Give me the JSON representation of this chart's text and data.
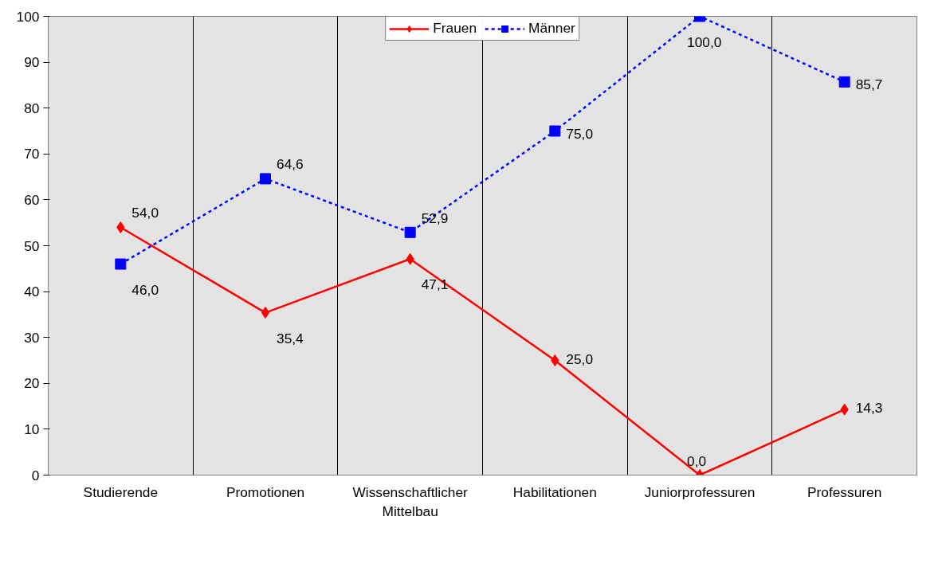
{
  "chart_data": {
    "type": "line",
    "categories": [
      "Studierende",
      "Promotionen",
      "Wissenschaftlicher\nMittelbau",
      "Habilitationen",
      "Juniorprofessuren",
      "Professuren"
    ],
    "series": [
      {
        "name": "Frauen",
        "color": "#ff0000",
        "marker": "diamond",
        "line_style": "solid",
        "values": [
          54.0,
          35.4,
          47.1,
          25.0,
          0.0,
          14.3
        ],
        "value_labels": [
          "54,0",
          "35,4",
          "47,1",
          "25,0",
          "0,0",
          "14,3"
        ]
      },
      {
        "name": "Männer",
        "color": "#0000ff",
        "marker": "square",
        "line_style": "dashed",
        "values": [
          46.0,
          64.6,
          52.9,
          75.0,
          100.0,
          85.7
        ],
        "value_labels": [
          "46,0",
          "64,6",
          "52,9",
          "75,0",
          "100,0",
          "85,7"
        ]
      }
    ],
    "ylim": [
      0,
      100
    ],
    "yticks": [
      0,
      10,
      20,
      30,
      40,
      50,
      60,
      70,
      80,
      90,
      100
    ],
    "grid": "x",
    "legend": "top"
  }
}
